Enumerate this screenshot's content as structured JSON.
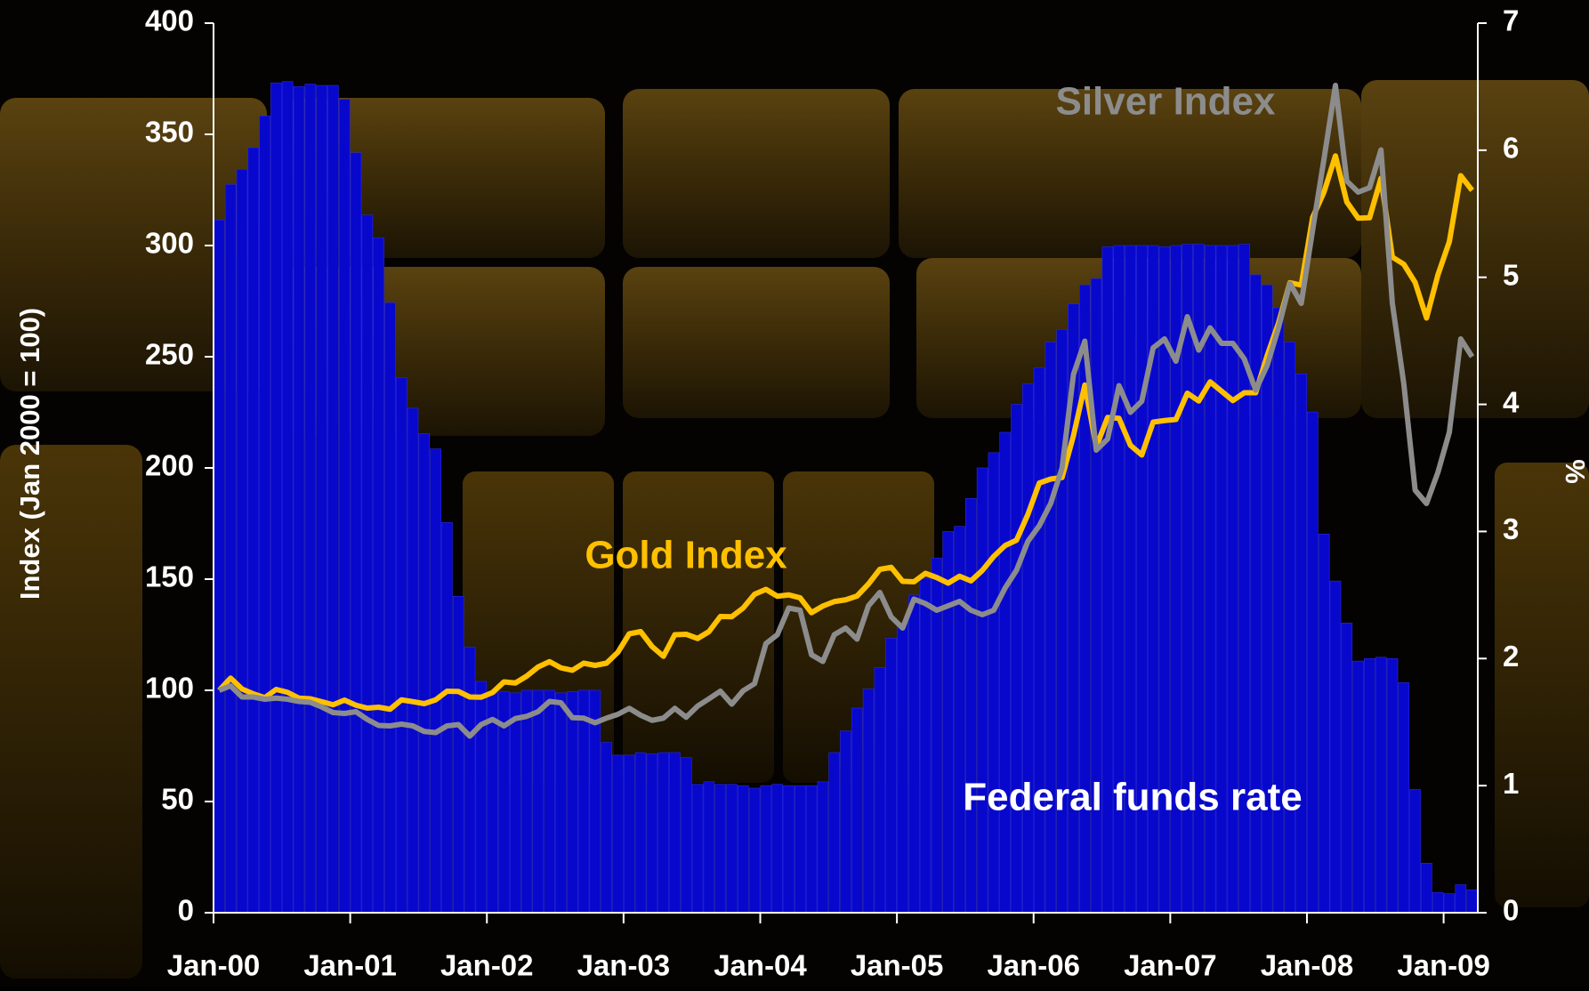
{
  "chart_data": {
    "type": "bar-line",
    "y_label": "Index (Jan 2000 = 100)",
    "y2_label": "%",
    "categories": [
      "Jan-00",
      null,
      null,
      null,
      null,
      null,
      null,
      null,
      null,
      null,
      null,
      null,
      "Jan-01",
      null,
      null,
      null,
      null,
      null,
      null,
      null,
      null,
      null,
      null,
      null,
      "Jan-02",
      null,
      null,
      null,
      null,
      null,
      null,
      null,
      null,
      null,
      null,
      null,
      "Jan-03",
      null,
      null,
      null,
      null,
      null,
      null,
      null,
      null,
      null,
      null,
      null,
      "Jan-04",
      null,
      null,
      null,
      null,
      null,
      null,
      null,
      null,
      null,
      null,
      null,
      "Jan-05",
      null,
      null,
      null,
      null,
      null,
      null,
      null,
      null,
      null,
      null,
      null,
      "Jan-06",
      null,
      null,
      null,
      null,
      null,
      null,
      null,
      null,
      null,
      null,
      null,
      "Jan-07",
      null,
      null,
      null,
      null,
      null,
      null,
      null,
      null,
      null,
      null,
      null,
      "Jan-08",
      null,
      null,
      null,
      null,
      null,
      null,
      null,
      null,
      null,
      null,
      null,
      "Jan-09",
      null,
      null
    ],
    "ylim": [
      0,
      400
    ],
    "yticks": [
      0,
      50,
      100,
      150,
      200,
      250,
      300,
      350,
      400
    ],
    "y2lim": [
      0,
      7
    ],
    "y2ticks": [
      0,
      1,
      2,
      3,
      4,
      5,
      6,
      7
    ],
    "series": [
      {
        "name": "Federal funds rate",
        "type": "bar",
        "axis": "y2",
        "color": "#0808cc",
        "values": [
          5.45,
          5.73,
          5.85,
          6.02,
          6.27,
          6.53,
          6.54,
          6.5,
          6.52,
          6.51,
          6.51,
          6.4,
          5.98,
          5.49,
          5.31,
          4.8,
          4.21,
          3.97,
          3.77,
          3.65,
          3.07,
          2.49,
          2.09,
          1.82,
          1.73,
          1.74,
          1.73,
          1.75,
          1.75,
          1.75,
          1.73,
          1.74,
          1.75,
          1.75,
          1.34,
          1.24,
          1.24,
          1.26,
          1.25,
          1.26,
          1.26,
          1.22,
          1.01,
          1.03,
          1.01,
          1.01,
          1.0,
          0.98,
          1.0,
          1.01,
          1.0,
          1.0,
          1.0,
          1.03,
          1.26,
          1.43,
          1.61,
          1.76,
          1.93,
          2.16,
          2.28,
          2.5,
          2.63,
          2.79,
          3.0,
          3.04,
          3.26,
          3.5,
          3.62,
          3.78,
          4.0,
          4.16,
          4.29,
          4.49,
          4.59,
          4.79,
          4.94,
          4.99,
          5.24,
          5.25,
          5.25,
          5.25,
          5.25,
          5.24,
          5.25,
          5.26,
          5.26,
          5.25,
          5.25,
          5.25,
          5.26,
          5.02,
          4.94,
          4.76,
          4.49,
          4.24,
          3.94,
          2.98,
          2.61,
          2.28,
          1.98,
          2.0,
          2.01,
          2.0,
          1.81,
          0.97,
          0.39,
          0.16,
          0.15,
          0.22,
          0.18
        ]
      },
      {
        "name": "Gold Index",
        "type": "line",
        "color": "#ffc000",
        "values": [
          100,
          105.5,
          100.6,
          98.4,
          96.7,
          100.4,
          99.1,
          96.5,
          96.2,
          94.9,
          93.5,
          95.6,
          93.3,
          92,
          92.4,
          91.5,
          95.7,
          94.9,
          94,
          95.7,
          99.6,
          99.5,
          97,
          96.9,
          99,
          103.8,
          103.3,
          106.4,
          110.5,
          112.9,
          110.1,
          109,
          112.2,
          111.2,
          112.2,
          117.1,
          125.4,
          126.4,
          119.7,
          115.3,
          125,
          125.2,
          123.3,
          126.4,
          133.2,
          133.1,
          137,
          143.2,
          145.4,
          142.3,
          142.9,
          141.6,
          134.9,
          137.9,
          139.9,
          140.7,
          142.4,
          147.8,
          154.4,
          155.3,
          149,
          148.8,
          152.6,
          150.7,
          148.2,
          151.3,
          149.2,
          153.9,
          160.2,
          165.1,
          167.5,
          179.1,
          193.2,
          195,
          195.7,
          214.5,
          237.3,
          209.5,
          222.7,
          222.3,
          210.2,
          205.8,
          220.6,
          221.3,
          221.8,
          233.6,
          230.1,
          238.7,
          234.5,
          230.3,
          233.8,
          233.8,
          250.4,
          265.1,
          283.3,
          282.2,
          312.6,
          324.1,
          340.3,
          319.6,
          312.3,
          312.5,
          330.2,
          294.8,
          291.6,
          283.4,
          267.4,
          286.8,
          301.7,
          331.4,
          324.8
        ]
      },
      {
        "name": "Silver Index",
        "type": "line",
        "color": "#8c8c8c",
        "values": [
          100,
          102,
          97,
          97,
          96,
          96.5,
          96,
          95,
          94.6,
          92.5,
          90,
          89.6,
          90.4,
          86.9,
          84.2,
          84,
          84.8,
          84,
          81.5,
          81,
          84,
          84.6,
          79.4,
          84.6,
          86.9,
          84,
          87.3,
          88.3,
          90.4,
          95,
          94.4,
          87.7,
          87.5,
          85.4,
          87.5,
          89.2,
          91.9,
          88.8,
          86.5,
          87.5,
          91.9,
          87.9,
          92.9,
          96.2,
          99.6,
          93.8,
          99.8,
          103,
          121,
          125,
          137,
          136,
          116,
          113,
          125,
          128,
          123,
          138,
          144,
          133,
          128,
          141,
          139,
          136,
          138,
          140,
          136,
          134,
          136,
          146,
          154,
          167,
          174,
          184,
          200,
          242,
          257,
          208,
          213,
          237,
          225,
          230,
          254,
          258,
          248,
          268,
          253,
          263,
          256,
          256,
          249,
          235,
          246,
          263,
          283,
          274,
          307,
          339,
          372,
          329,
          324,
          326,
          343,
          274,
          238,
          190,
          184,
          198,
          216,
          258,
          250
        ]
      }
    ]
  }
}
